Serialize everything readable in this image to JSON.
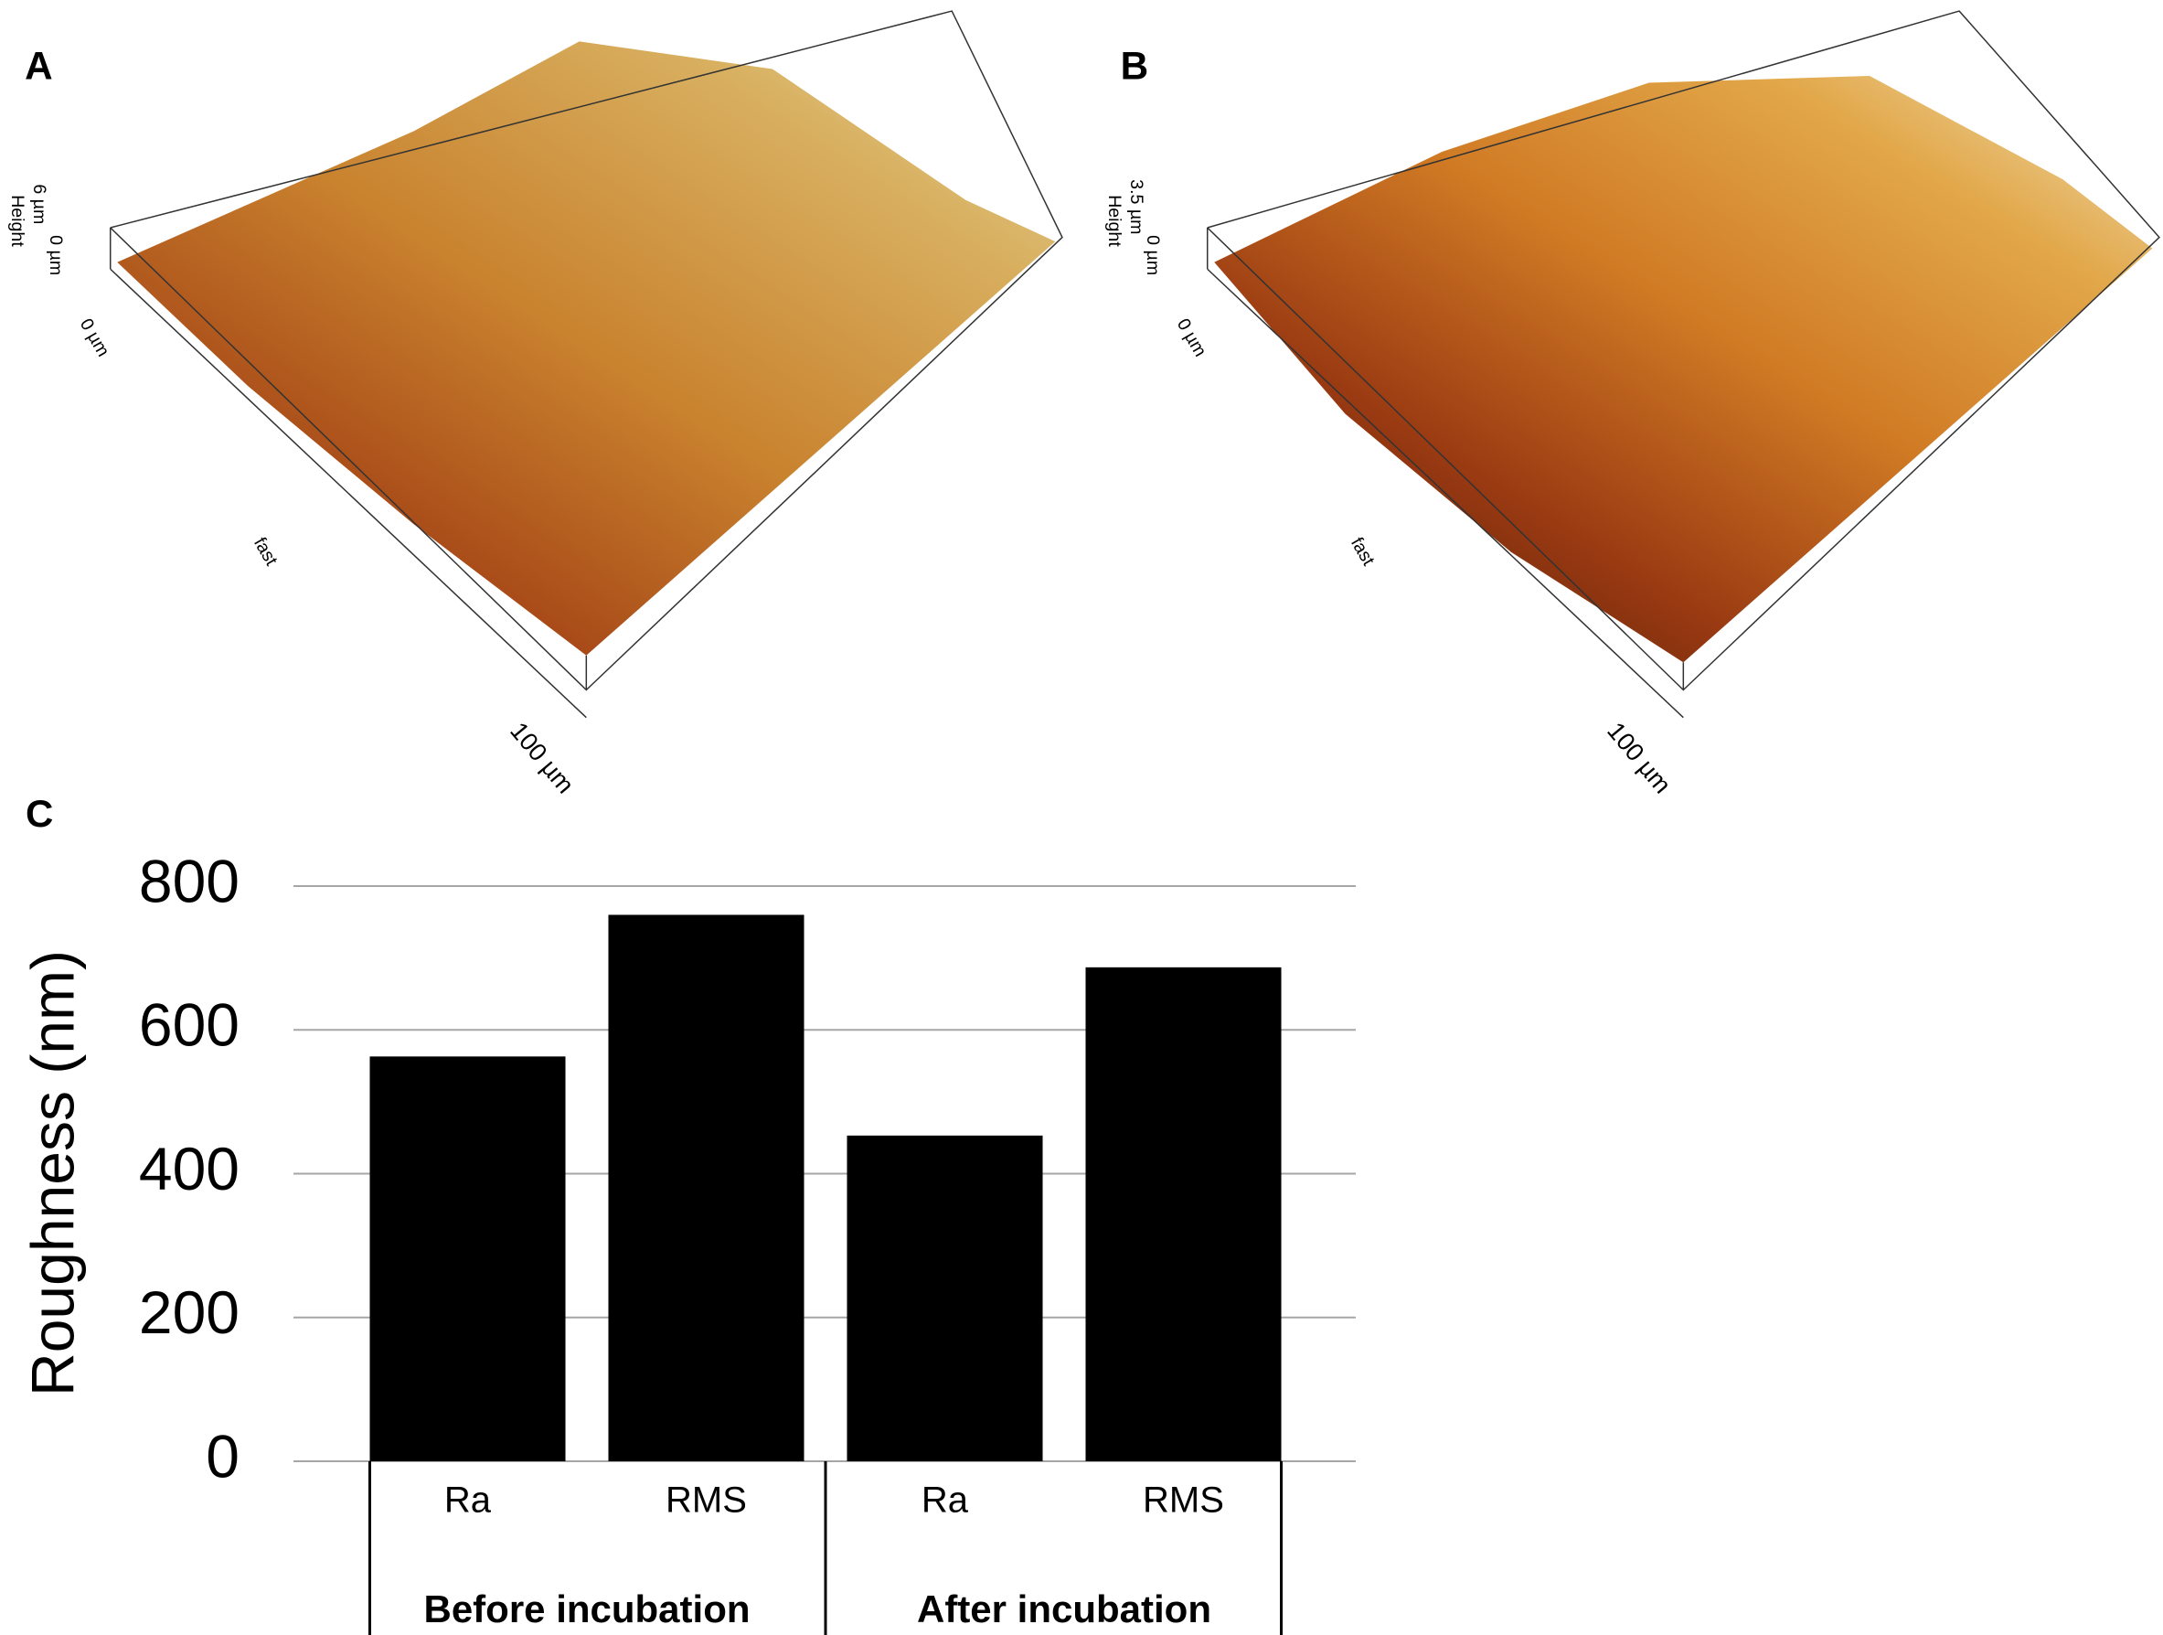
{
  "panels": [
    {
      "label": "A",
      "height_label": "Height",
      "z_max": "6 µm",
      "z_min": "0 µm",
      "origin": "0 µm",
      "axis": "fast",
      "extent": "100 µm"
    },
    {
      "label": "B",
      "height_label": "Height",
      "z_max": "3.5 µm",
      "z_min": "0 µm",
      "origin": "0 µm",
      "axis": "fast",
      "extent": "100 µm"
    }
  ],
  "chart_label": "C",
  "chart_data": {
    "type": "bar",
    "categories": [
      "Ra",
      "RMS",
      "Ra",
      "RMS"
    ],
    "groups": [
      "Before incubation",
      "After incubation"
    ],
    "values": [
      563,
      760,
      453,
      687
    ],
    "color": "#000000",
    "y_label": "Roughness (nm)",
    "ylim": [
      0,
      800
    ],
    "yticks": [
      0,
      200,
      400,
      600,
      800
    ],
    "grid": true
  }
}
